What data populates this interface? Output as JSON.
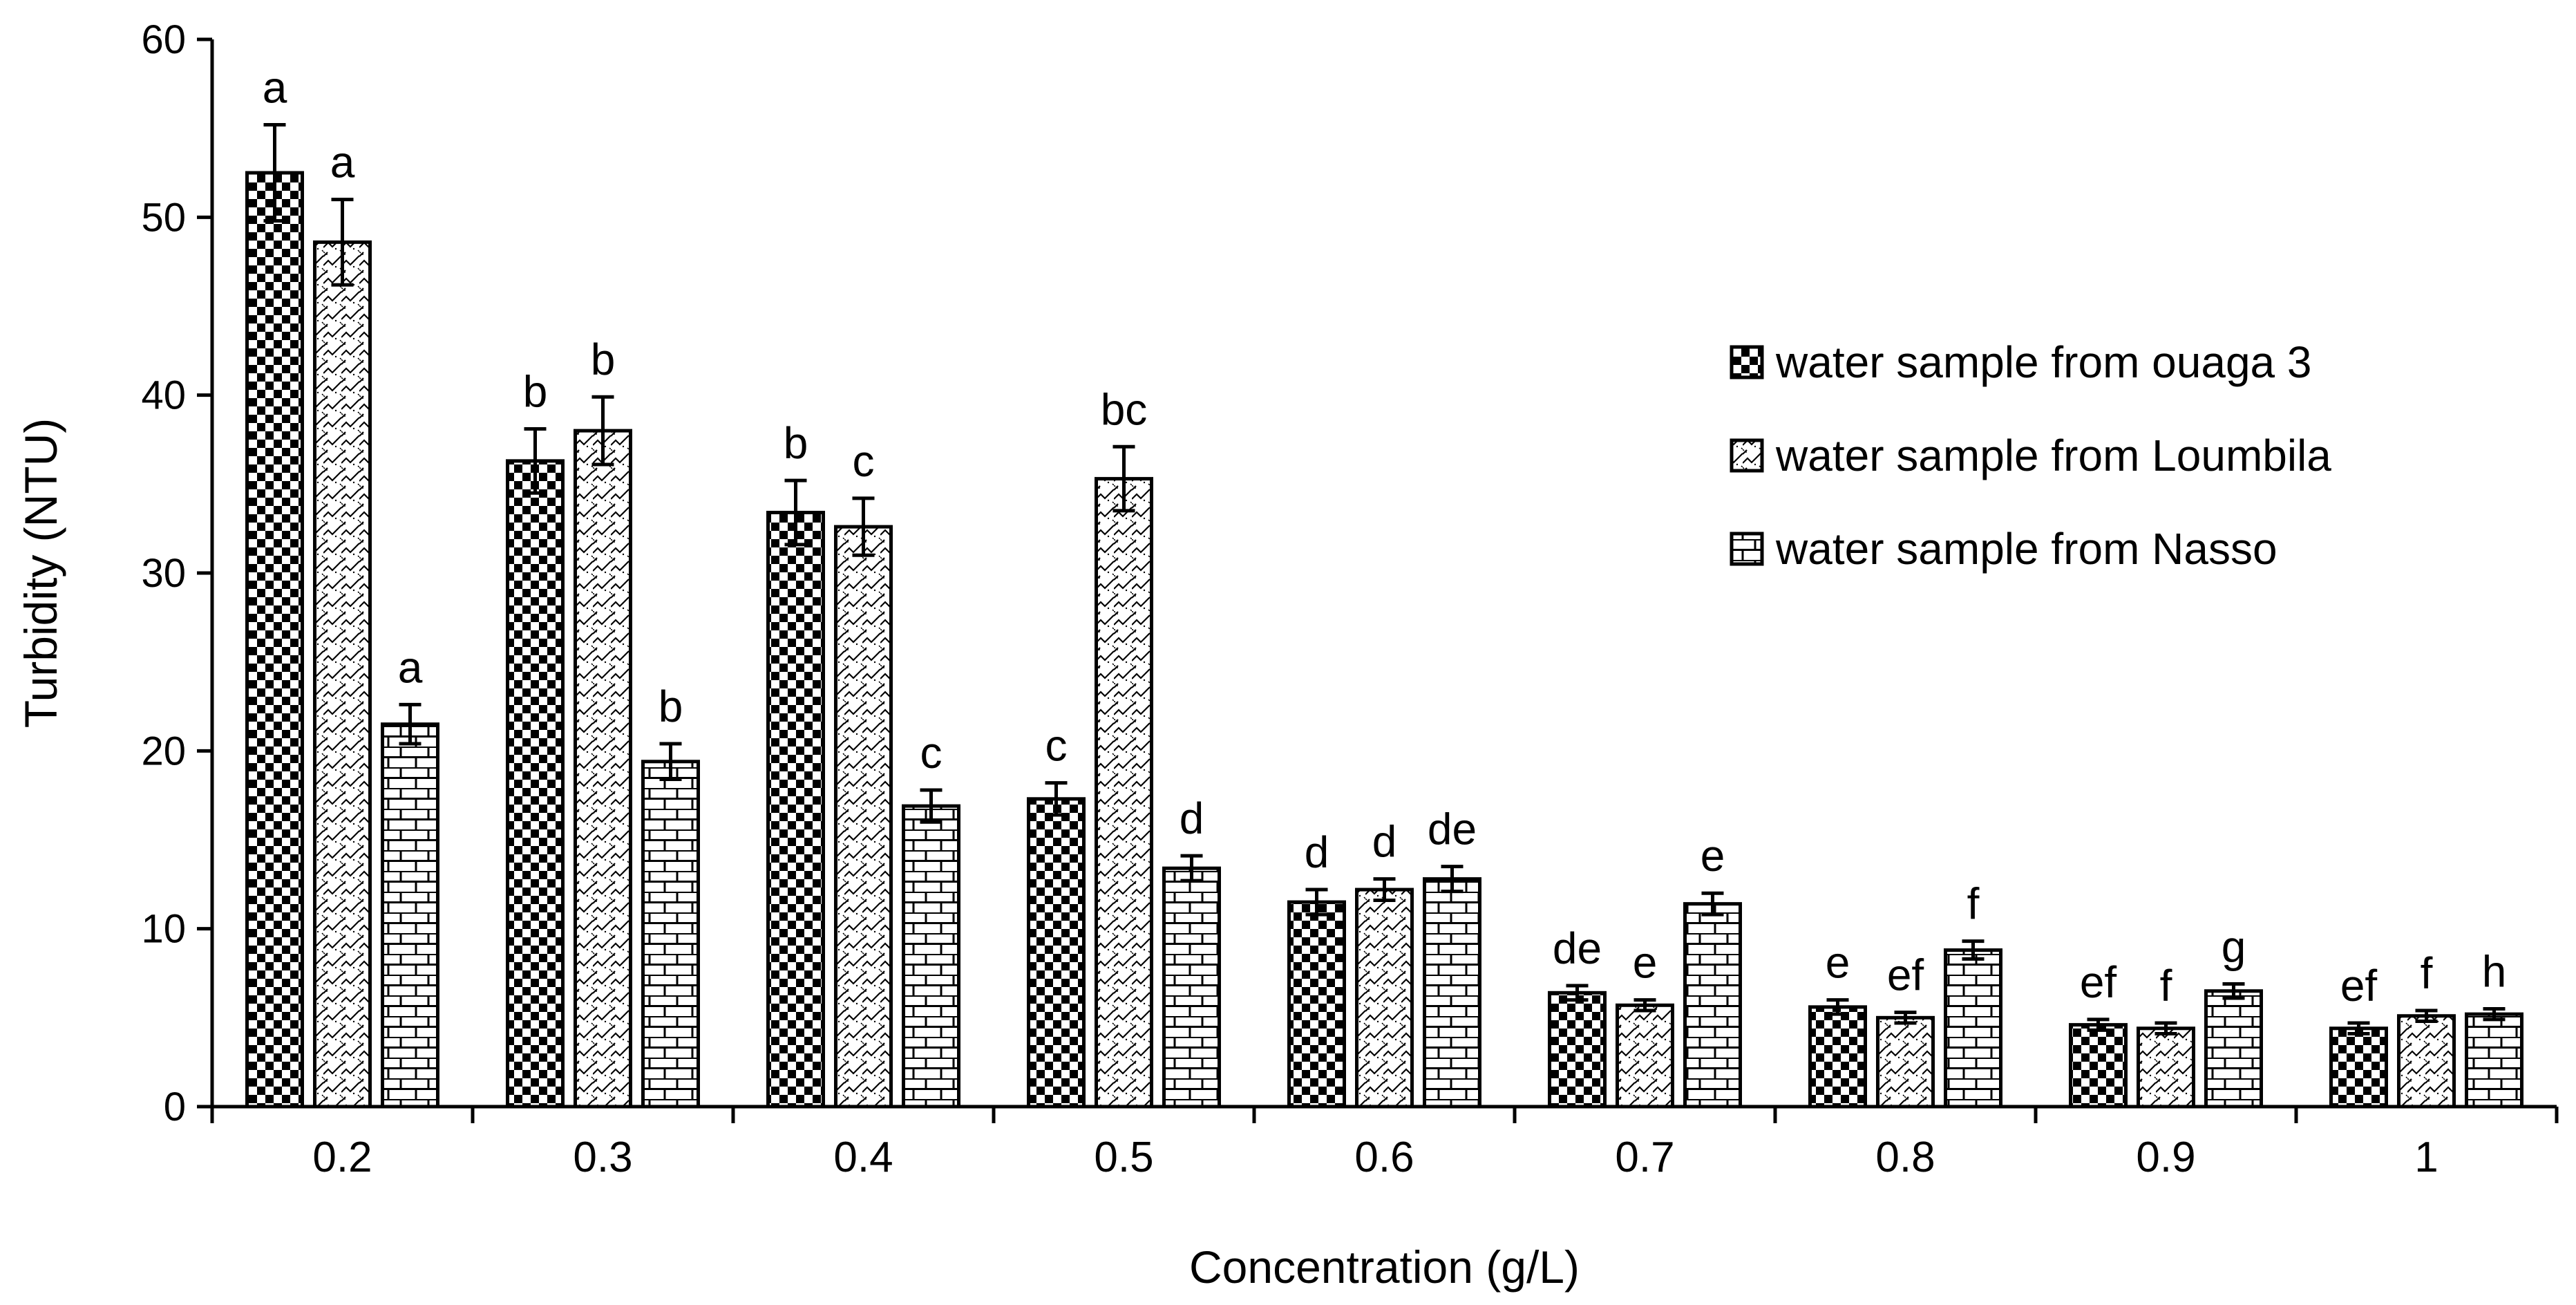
{
  "chart_data": {
    "type": "bar",
    "title": "",
    "xlabel": "Concentration (g/L)",
    "ylabel": "Turbidity (NTU)",
    "ylim": [
      0,
      60
    ],
    "yticks": [
      0,
      10,
      20,
      30,
      40,
      50,
      60
    ],
    "categories": [
      "0.2",
      "0.3",
      "0.4",
      "0.5",
      "0.6",
      "0.7",
      "0.8",
      "0.9",
      "1"
    ],
    "series": [
      {
        "name": "water sample from ouaga 3",
        "pattern": "checker",
        "values": [
          52.5,
          36.3,
          33.4,
          17.3,
          11.5,
          6.4,
          5.6,
          4.6,
          4.4
        ],
        "errors": [
          2.7,
          1.8,
          1.8,
          0.9,
          0.7,
          0.4,
          0.4,
          0.3,
          0.3
        ],
        "letters": [
          "a",
          "b",
          "b",
          "c",
          "d",
          "de",
          "e",
          "ef",
          "ef"
        ]
      },
      {
        "name": "water sample from Loumbila",
        "pattern": "wave",
        "values": [
          48.6,
          38.0,
          32.6,
          35.3,
          12.2,
          5.7,
          5.0,
          4.4,
          5.1
        ],
        "errors": [
          2.4,
          1.9,
          1.6,
          1.8,
          0.6,
          0.3,
          0.3,
          0.3,
          0.3
        ],
        "letters": [
          "a",
          "b",
          "c",
          "bc",
          "d",
          "e",
          "ef",
          "f",
          "f"
        ]
      },
      {
        "name": "water sample from Nasso",
        "pattern": "brick",
        "values": [
          21.5,
          19.4,
          16.9,
          13.4,
          12.8,
          11.4,
          8.8,
          6.5,
          5.2
        ],
        "errors": [
          1.1,
          1.0,
          0.9,
          0.7,
          0.7,
          0.6,
          0.5,
          0.4,
          0.3
        ],
        "letters": [
          "a",
          "b",
          "c",
          "d",
          "de",
          "e",
          "f",
          "g",
          "h"
        ]
      }
    ],
    "legend_position": "right"
  }
}
